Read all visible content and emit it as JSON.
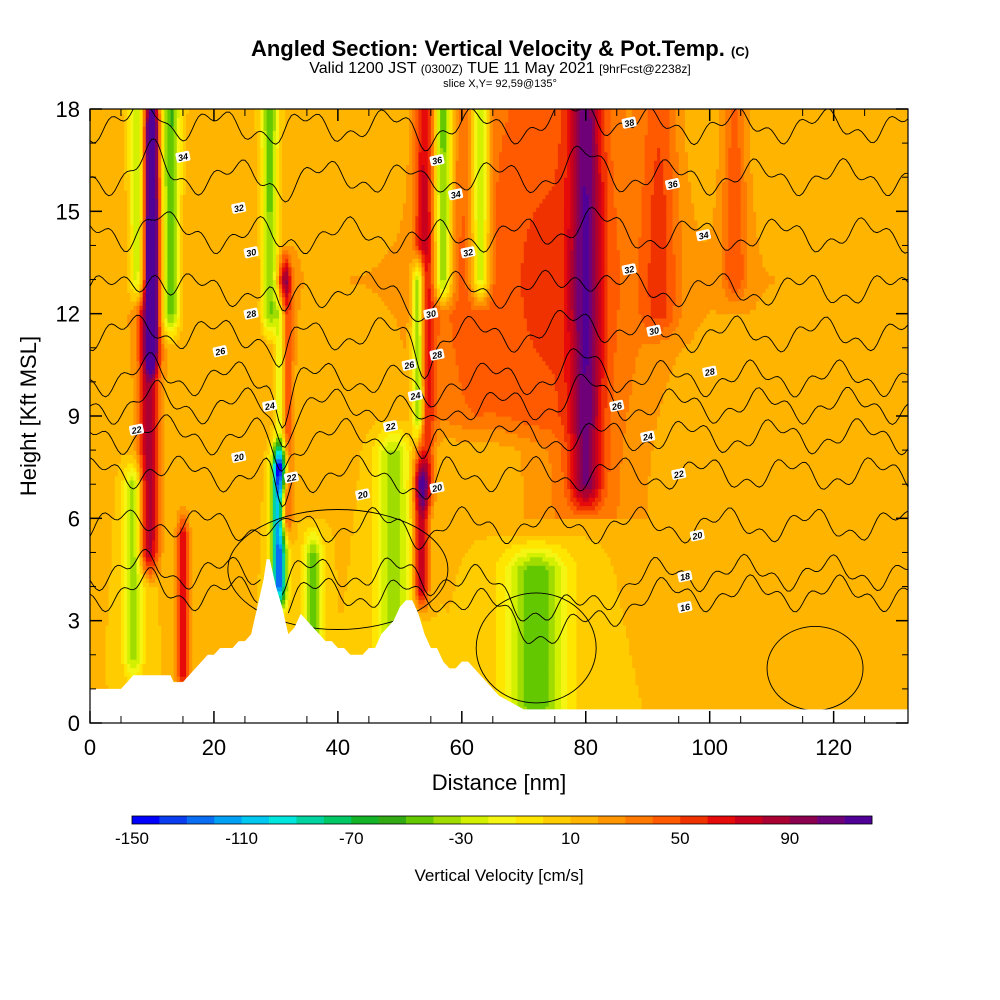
{
  "title": {
    "main": "Angled Section: Vertical Velocity & Pot.Temp.",
    "copyright": "(C)",
    "valid_prefix": "Valid 1200 JST",
    "valid_utc": "(0300Z)",
    "valid_date": "TUE 11 May 2021",
    "forecast": "[9hrFcst@2238z]",
    "slice": "slice X,Y= 92,59@135°"
  },
  "chart_data": {
    "type": "heatmap",
    "description_fields": "vertical velocity (shaded) with potential temperature contours",
    "xlabel": "Distance [nm]",
    "ylabel": "Height [Kft MSL]",
    "xlim": [
      0,
      132
    ],
    "ylim": [
      0,
      18
    ],
    "xticks": [
      0,
      20,
      40,
      60,
      80,
      100,
      120
    ],
    "yticks": [
      0,
      3,
      6,
      9,
      12,
      15,
      18
    ],
    "colorbar": {
      "label": "Vertical Velocity [cm/s]",
      "tick_labels": [
        -150,
        -110,
        -70,
        -30,
        10,
        50,
        90
      ],
      "colors": [
        "#0000ff",
        "#0a3cf0",
        "#0a6ef5",
        "#00a0f5",
        "#00c8f0",
        "#00e6dc",
        "#00d2a0",
        "#00c864",
        "#14b428",
        "#32aa14",
        "#64c800",
        "#a0dc00",
        "#d2f000",
        "#f5f514",
        "#ffe600",
        "#ffcc00",
        "#ffb400",
        "#ff9600",
        "#ff7800",
        "#ff5a00",
        "#f03200",
        "#e60a0a",
        "#c8001e",
        "#aa0032",
        "#8c0050",
        "#6e0078",
        "#500096"
      ]
    },
    "background_value": 10,
    "updrafts": [
      {
        "x": 9.5,
        "w": 1.6,
        "peak": 85,
        "from": 5,
        "to": 18
      },
      {
        "x": 10,
        "w": 1.0,
        "peak": 100,
        "from": 11,
        "to": 17.5
      },
      {
        "x": 15,
        "w": 1.0,
        "peak": 70,
        "from": 1.5,
        "to": 5.5
      },
      {
        "x": 31.5,
        "w": 1.0,
        "peak": 90,
        "from": 6,
        "to": 13
      },
      {
        "x": 53.5,
        "w": 1.2,
        "peak": 85,
        "from": 4,
        "to": 7
      },
      {
        "x": 54,
        "w": 1.6,
        "peak": 60,
        "from": 7,
        "to": 18
      },
      {
        "x": 80,
        "w": 2.5,
        "peak": 75,
        "from": 7,
        "to": 18
      },
      {
        "x": 92,
        "w": 3.0,
        "peak": 40,
        "from": 12,
        "to": 18
      },
      {
        "x": 104,
        "w": 2.0,
        "peak": 40,
        "from": 13,
        "to": 18
      },
      {
        "x": 60,
        "w": 6.0,
        "peak": 30,
        "from": 9,
        "to": 18
      },
      {
        "x": 70,
        "w": 8.0,
        "peak": 30,
        "from": 9,
        "to": 18
      }
    ],
    "downdrafts": [
      {
        "x": 8,
        "w": 1.5,
        "peak": -55,
        "from": 13,
        "to": 18
      },
      {
        "x": 13,
        "w": 1.5,
        "peak": -55,
        "from": 12,
        "to": 18
      },
      {
        "x": 30.5,
        "w": 1.2,
        "peak": -130,
        "from": 4,
        "to": 7.5
      },
      {
        "x": 31,
        "w": 1.0,
        "peak": -70,
        "from": 7.5,
        "to": 12
      },
      {
        "x": 29,
        "w": 1.3,
        "peak": -50,
        "from": 12,
        "to": 18
      },
      {
        "x": 53,
        "w": 1.0,
        "peak": -80,
        "from": 9,
        "to": 13
      },
      {
        "x": 57,
        "w": 1.5,
        "peak": -65,
        "from": 13,
        "to": 18
      },
      {
        "x": 63,
        "w": 1.5,
        "peak": -60,
        "from": 13,
        "to": 18
      },
      {
        "x": 72,
        "w": 5.0,
        "peak": -50,
        "from": 0.5,
        "to": 4.5
      },
      {
        "x": 49,
        "w": 3.0,
        "peak": -35,
        "from": 2.0,
        "to": 8
      },
      {
        "x": 36,
        "w": 1.5,
        "peak": -45,
        "from": 2.0,
        "to": 5
      },
      {
        "x": 7,
        "w": 1.5,
        "peak": -40,
        "from": 2,
        "to": 7
      }
    ],
    "terrain": [
      [
        0,
        1.0
      ],
      [
        5,
        1.0
      ],
      [
        6,
        1.2
      ],
      [
        7,
        1.4
      ],
      [
        8,
        1.4
      ],
      [
        9,
        1.4
      ],
      [
        10,
        1.4
      ],
      [
        11,
        1.4
      ],
      [
        12,
        1.4
      ],
      [
        13,
        1.4
      ],
      [
        13.5,
        1.2
      ],
      [
        14,
        1.2
      ],
      [
        15,
        1.2
      ],
      [
        16,
        1.4
      ],
      [
        17,
        1.6
      ],
      [
        18,
        1.8
      ],
      [
        19,
        2.0
      ],
      [
        20,
        2.0
      ],
      [
        21,
        2.2
      ],
      [
        22,
        2.2
      ],
      [
        23,
        2.2
      ],
      [
        24,
        2.4
      ],
      [
        25,
        2.4
      ],
      [
        26,
        2.6
      ],
      [
        27,
        3.4
      ],
      [
        28,
        4.2
      ],
      [
        28.5,
        4.8
      ],
      [
        29,
        4.8
      ],
      [
        30,
        4.0
      ],
      [
        31,
        3.4
      ],
      [
        32,
        2.6
      ],
      [
        33,
        2.8
      ],
      [
        34,
        3.2
      ],
      [
        35,
        3.0
      ],
      [
        36,
        2.8
      ],
      [
        37,
        2.6
      ],
      [
        38,
        2.4
      ],
      [
        39,
        2.4
      ],
      [
        40,
        2.2
      ],
      [
        41,
        2.2
      ],
      [
        42,
        2.0
      ],
      [
        43,
        2.0
      ],
      [
        44,
        2.0
      ],
      [
        45,
        2.2
      ],
      [
        46,
        2.2
      ],
      [
        47,
        2.6
      ],
      [
        48,
        2.8
      ],
      [
        49,
        3.0
      ],
      [
        50,
        3.4
      ],
      [
        51,
        3.6
      ],
      [
        52,
        3.6
      ],
      [
        53,
        3.2
      ],
      [
        54,
        2.6
      ],
      [
        55,
        2.2
      ],
      [
        56,
        2.2
      ],
      [
        57,
        1.8
      ],
      [
        58,
        1.6
      ],
      [
        59,
        1.6
      ],
      [
        60,
        1.8
      ],
      [
        61,
        1.8
      ],
      [
        62,
        1.6
      ],
      [
        63,
        1.4
      ],
      [
        64,
        1.2
      ],
      [
        65,
        1.0
      ],
      [
        66,
        0.8
      ],
      [
        67,
        0.7
      ],
      [
        68,
        0.6
      ],
      [
        69,
        0.5
      ],
      [
        70,
        0.4
      ],
      [
        132,
        0.4
      ]
    ],
    "contours": [
      {
        "label": "16",
        "base": 3.8,
        "label_at": [
          96,
          3.6
        ],
        "shape": "low"
      },
      {
        "label": "18",
        "base": 4.4,
        "label_at": [
          96,
          4.3
        ],
        "shape": "low"
      },
      {
        "label": "20",
        "base": 5.8,
        "label_at": [
          98,
          5.5
        ],
        "shape": "mid"
      },
      {
        "label": "22",
        "base": 7.3,
        "label_at": [
          95,
          7.3
        ],
        "shape": "mid"
      },
      {
        "label": "24",
        "base": 8.4,
        "label_at": [
          90,
          8.4
        ],
        "shape": "mid"
      },
      {
        "label": "26",
        "base": 9.3,
        "label_at": [
          85,
          9.3
        ],
        "shape": "mid"
      },
      {
        "label": "28",
        "base": 10.1,
        "label_at": [
          100,
          10.3
        ],
        "shape": "mid"
      },
      {
        "label": "30",
        "base": 11.4,
        "label_at": [
          91,
          11.5
        ],
        "shape": "mid"
      },
      {
        "label": "32",
        "base": 12.7,
        "label_at": [
          87,
          13.3
        ],
        "shape": "mid"
      },
      {
        "label": "34",
        "base": 14.3,
        "label_at": [
          100,
          14.3
        ],
        "shape": "mid"
      },
      {
        "label": "36",
        "base": 16.0,
        "label_at": [
          95,
          15.6
        ],
        "shape": "mid"
      },
      {
        "label": "38",
        "base": 17.5,
        "label_at": [
          88,
          17.5
        ],
        "shape": "mid"
      }
    ],
    "contour_labels": [
      {
        "text": "34",
        "x": 15,
        "y": 16.6
      },
      {
        "text": "32",
        "x": 24,
        "y": 15.1
      },
      {
        "text": "30",
        "x": 26,
        "y": 13.8
      },
      {
        "text": "28",
        "x": 26,
        "y": 12.0
      },
      {
        "text": "26",
        "x": 21,
        "y": 10.9
      },
      {
        "text": "24",
        "x": 29,
        "y": 9.3
      },
      {
        "text": "22",
        "x": 7.5,
        "y": 8.6
      },
      {
        "text": "20",
        "x": 24,
        "y": 7.8
      },
      {
        "text": "22",
        "x": 32.5,
        "y": 7.2
      },
      {
        "text": "22",
        "x": 48.5,
        "y": 8.7
      },
      {
        "text": "20",
        "x": 44,
        "y": 6.7
      },
      {
        "text": "20",
        "x": 56,
        "y": 6.9
      },
      {
        "text": "26",
        "x": 51.5,
        "y": 10.5
      },
      {
        "text": "24",
        "x": 52.5,
        "y": 9.6
      },
      {
        "text": "28",
        "x": 56,
        "y": 10.8
      },
      {
        "text": "30",
        "x": 55,
        "y": 12.0
      },
      {
        "text": "32",
        "x": 61,
        "y": 13.8
      },
      {
        "text": "34",
        "x": 59,
        "y": 15.5
      },
      {
        "text": "36",
        "x": 56,
        "y": 16.5
      },
      {
        "text": "38",
        "x": 87,
        "y": 17.6
      },
      {
        "text": "36",
        "x": 94,
        "y": 15.8
      },
      {
        "text": "34",
        "x": 99,
        "y": 14.3
      },
      {
        "text": "32",
        "x": 87,
        "y": 13.3
      },
      {
        "text": "30",
        "x": 91,
        "y": 11.5
      },
      {
        "text": "28",
        "x": 100,
        "y": 10.3
      },
      {
        "text": "26",
        "x": 85,
        "y": 9.3
      },
      {
        "text": "24",
        "x": 90,
        "y": 8.4
      },
      {
        "text": "22",
        "x": 95,
        "y": 7.3
      },
      {
        "text": "20",
        "x": 98,
        "y": 5.5
      },
      {
        "text": "18",
        "x": 96,
        "y": 4.3
      },
      {
        "text": "16",
        "x": 96,
        "y": 3.4
      }
    ]
  }
}
